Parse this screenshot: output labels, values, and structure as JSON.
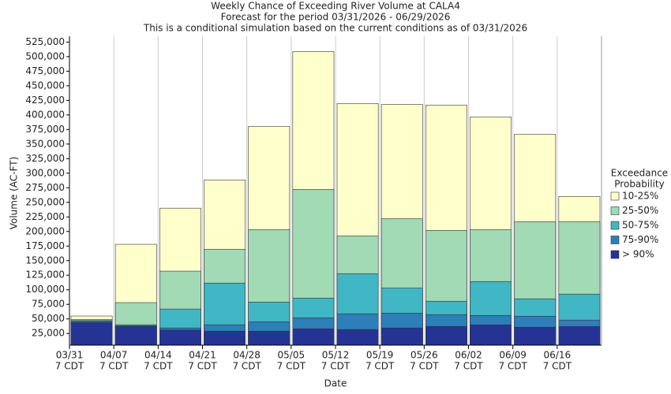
{
  "chart_data": {
    "type": "bar",
    "title": [
      "Weekly Chance of Exceeding River Volume at CALA4",
      "Forecast for the period 03/31/2026 - 06/29/2026",
      "This is a conditional simulation based on the current conditions as of 03/31/2026"
    ],
    "x_label": "Date",
    "y_label": "Volume (AC-FT)",
    "categories": [
      "03/31",
      "04/07",
      "04/14",
      "04/21",
      "04/28",
      "05/05",
      "05/12",
      "05/19",
      "05/26",
      "06/02",
      "06/09",
      "06/16"
    ],
    "category_suffix": "7 CDT",
    "legend_title": [
      "Exceedance",
      "Probability"
    ],
    "series": [
      {
        "name": "10-25%",
        "color": "#ffffcc",
        "values": [
          55000,
          178000,
          240000,
          288500,
          380400,
          508800,
          419600,
          418000,
          417000,
          396600,
          367000,
          260000
        ]
      },
      {
        "name": "25-50%",
        "color": "#a1dab4",
        "values": [
          49000,
          78000,
          132000,
          169600,
          203400,
          272300,
          192600,
          222000,
          202000,
          203400,
          216900,
          217000
        ]
      },
      {
        "name": "50-75%",
        "color": "#41b6c4",
        "values": [
          47000,
          40000,
          67000,
          111500,
          79000,
          85800,
          127700,
          103000,
          80400,
          114200,
          84500,
          92600
        ]
      },
      {
        "name": "75-90%",
        "color": "#2c7fb8",
        "values": [
          46000,
          38500,
          34500,
          40000,
          45000,
          52000,
          58800,
          60000,
          57400,
          56000,
          54700,
          48000
        ]
      },
      {
        "name": "> 90%",
        "color": "#253494",
        "values": [
          44000,
          37000,
          31000,
          29000,
          29000,
          33000,
          31800,
          34500,
          37200,
          39900,
          35800,
          37000
        ]
      }
    ],
    "ylim": [
      5000,
      535000
    ],
    "yticks": [
      {
        "value": 25000,
        "label": "25,000"
      },
      {
        "value": 50000,
        "label": "50,000"
      },
      {
        "value": 75000,
        "label": "75,000"
      },
      {
        "value": 100000,
        "label": "100,000"
      },
      {
        "value": 125000,
        "label": "125,000"
      },
      {
        "value": 150000,
        "label": "150,000"
      },
      {
        "value": 175000,
        "label": "175,000"
      },
      {
        "value": 200000,
        "label": "200,000"
      },
      {
        "value": 225000,
        "label": "225,000"
      },
      {
        "value": 250000,
        "label": "250,000"
      },
      {
        "value": 275000,
        "label": "275,000"
      },
      {
        "value": 300000,
        "label": "300,000"
      },
      {
        "value": 325000,
        "label": "325,000"
      },
      {
        "value": 350000,
        "label": "350,000"
      },
      {
        "value": 375000,
        "label": "375,000"
      },
      {
        "value": 400000,
        "label": "400,000"
      },
      {
        "value": 425000,
        "label": "425,000"
      },
      {
        "value": 450000,
        "label": "450,000"
      },
      {
        "value": 475000,
        "label": "475,000"
      },
      {
        "value": 500000,
        "label": "500,000"
      },
      {
        "value": 525000,
        "label": "525,000"
      }
    ],
    "grid": true
  }
}
